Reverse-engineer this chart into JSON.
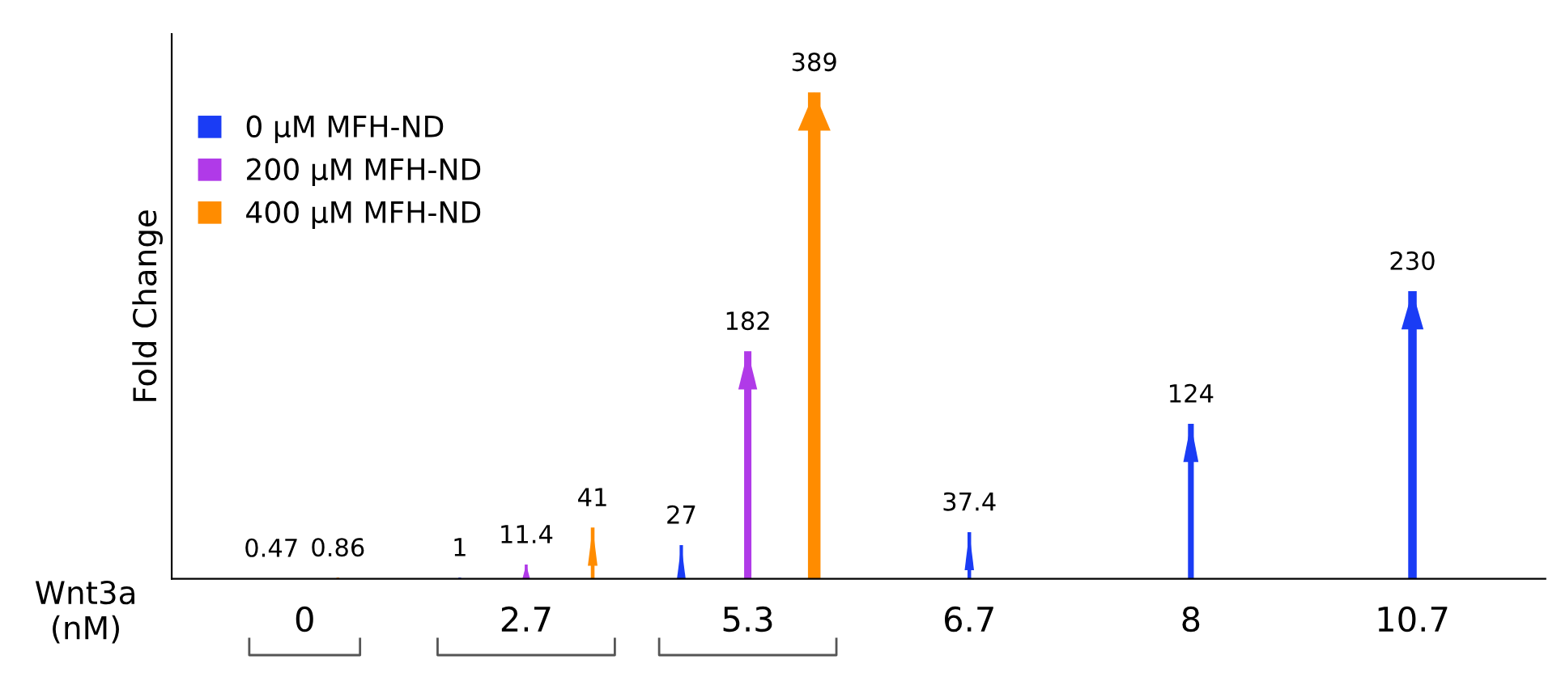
{
  "chart_data": {
    "type": "bar",
    "ylabel": "Fold Change",
    "xlabel": "Wnt3a\n(nM)",
    "categories": [
      "0",
      "2.7",
      "5.3",
      "6.7",
      "8",
      "10.7"
    ],
    "series": [
      {
        "name": "0 µM MFH-ND",
        "color": "#1a3cf5",
        "values": [
          null,
          1,
          27,
          37.4,
          124,
          230
        ]
      },
      {
        "name": "200 µM MFH-ND",
        "color": "#b03ae8",
        "values": [
          0.47,
          11.4,
          182,
          null,
          null,
          null
        ]
      },
      {
        "name": "400 µM MFH-ND",
        "color": "#ff8c00",
        "values": [
          0.86,
          41,
          389,
          null,
          null,
          null
        ]
      }
    ],
    "data_labels": true,
    "legend": "top left",
    "grid": false
  }
}
